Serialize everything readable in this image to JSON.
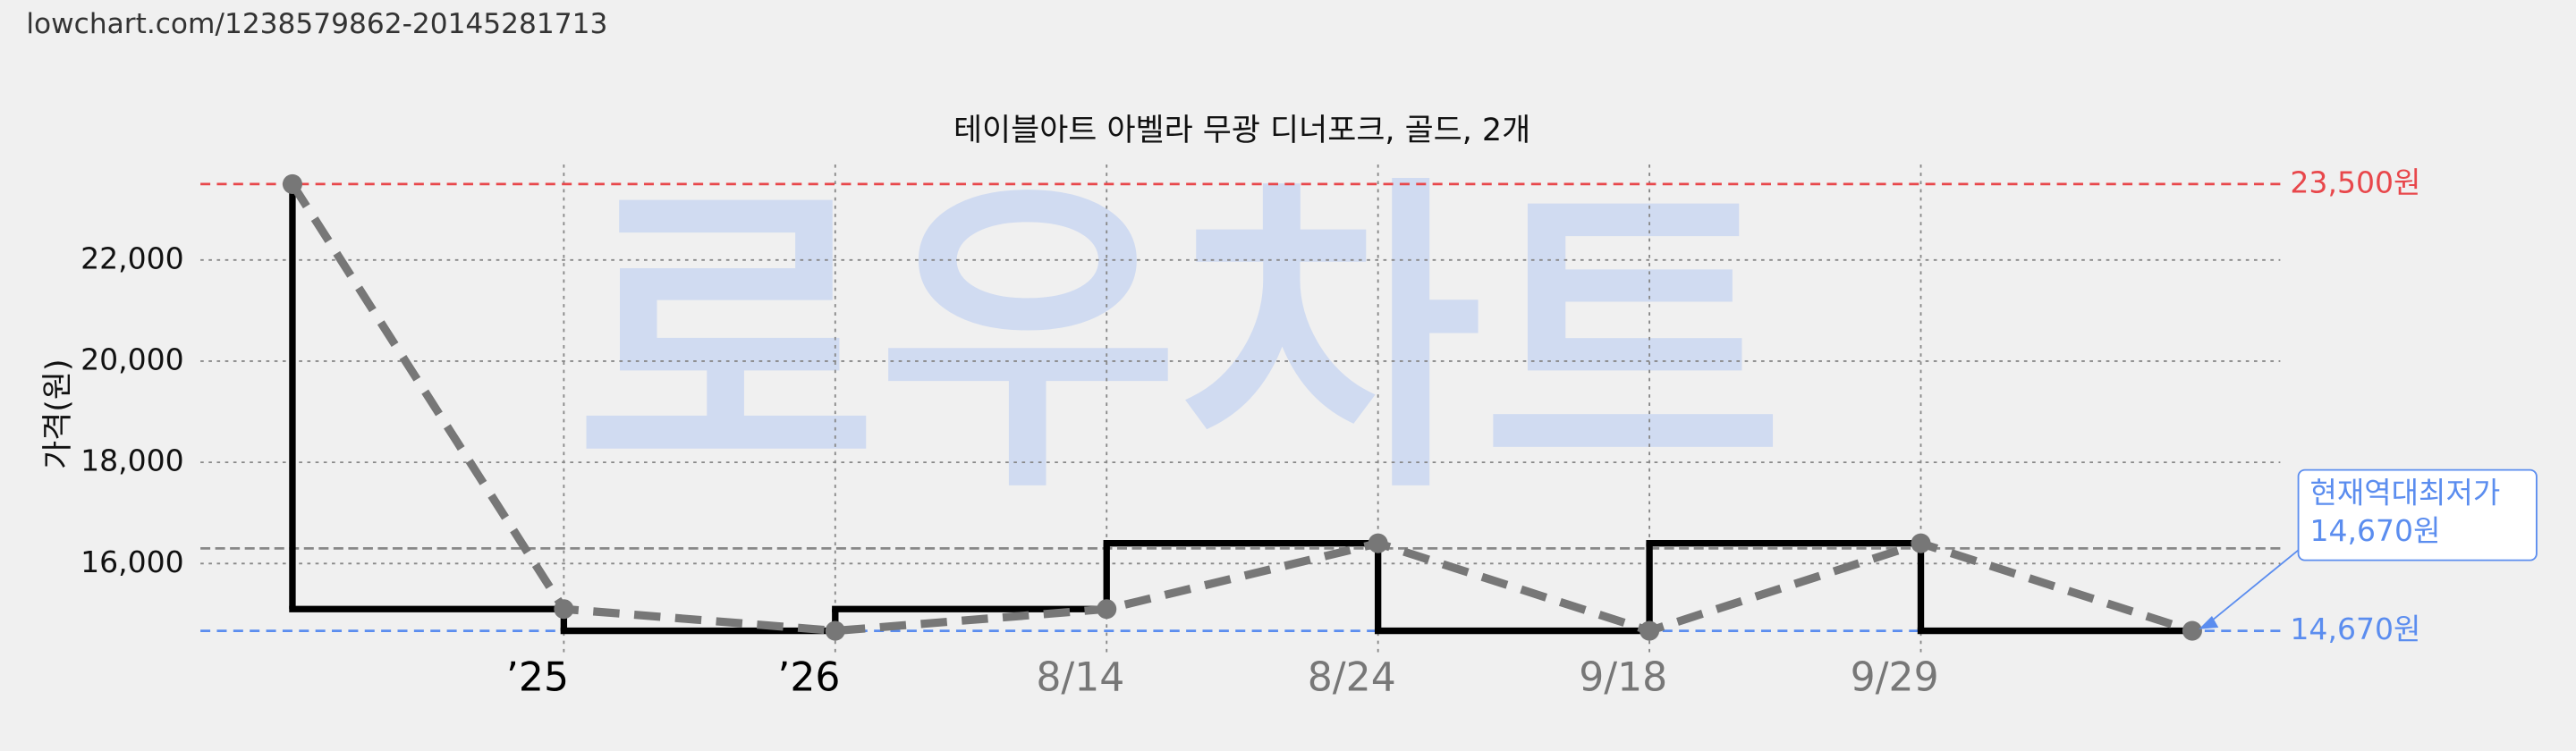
{
  "url": "lowchart.com/1238579862-20145281713",
  "chart_data": {
    "type": "line",
    "title": "테이블아트 아벨라 무광 디너포크, 골드, 2개",
    "y_label": "가격(원)",
    "watermark": "로우차트",
    "categories": [
      null,
      "’25",
      "’26",
      "8/14",
      "8/24",
      "9/18",
      "9/29",
      null
    ],
    "category_colors": [
      "#000000",
      "#000000",
      "#000000",
      "#777777",
      "#777777",
      "#777777",
      "#777777",
      "#000000"
    ],
    "series": [
      {
        "style": "step",
        "color": "#000000",
        "values": [
          23500,
          15100,
          14670,
          15100,
          16400,
          14670,
          16400,
          14670
        ]
      },
      {
        "style": "dashed",
        "color": "#777777",
        "values": [
          23500,
          15100,
          14670,
          15100,
          16400,
          14670,
          16400,
          14670
        ]
      }
    ],
    "ylim": [
      14150,
      24050
    ],
    "yticks": [
      {
        "value": 16000,
        "label": "16,000"
      },
      {
        "value": 18000,
        "label": "18,000"
      },
      {
        "value": 20000,
        "label": "20,000"
      },
      {
        "value": 22000,
        "label": "22,000"
      }
    ],
    "grid": true,
    "average_line": {
      "value": 16300,
      "color": "#888888"
    },
    "max_line": {
      "value": 23500,
      "label": "23,500원",
      "color": "#e8474b"
    },
    "min_line": {
      "value": 14670,
      "label": "14,670원",
      "color": "#5b8def"
    },
    "callout": {
      "lines": [
        "현재역대최저가",
        "14,670원"
      ],
      "color": "#5b8def"
    }
  }
}
